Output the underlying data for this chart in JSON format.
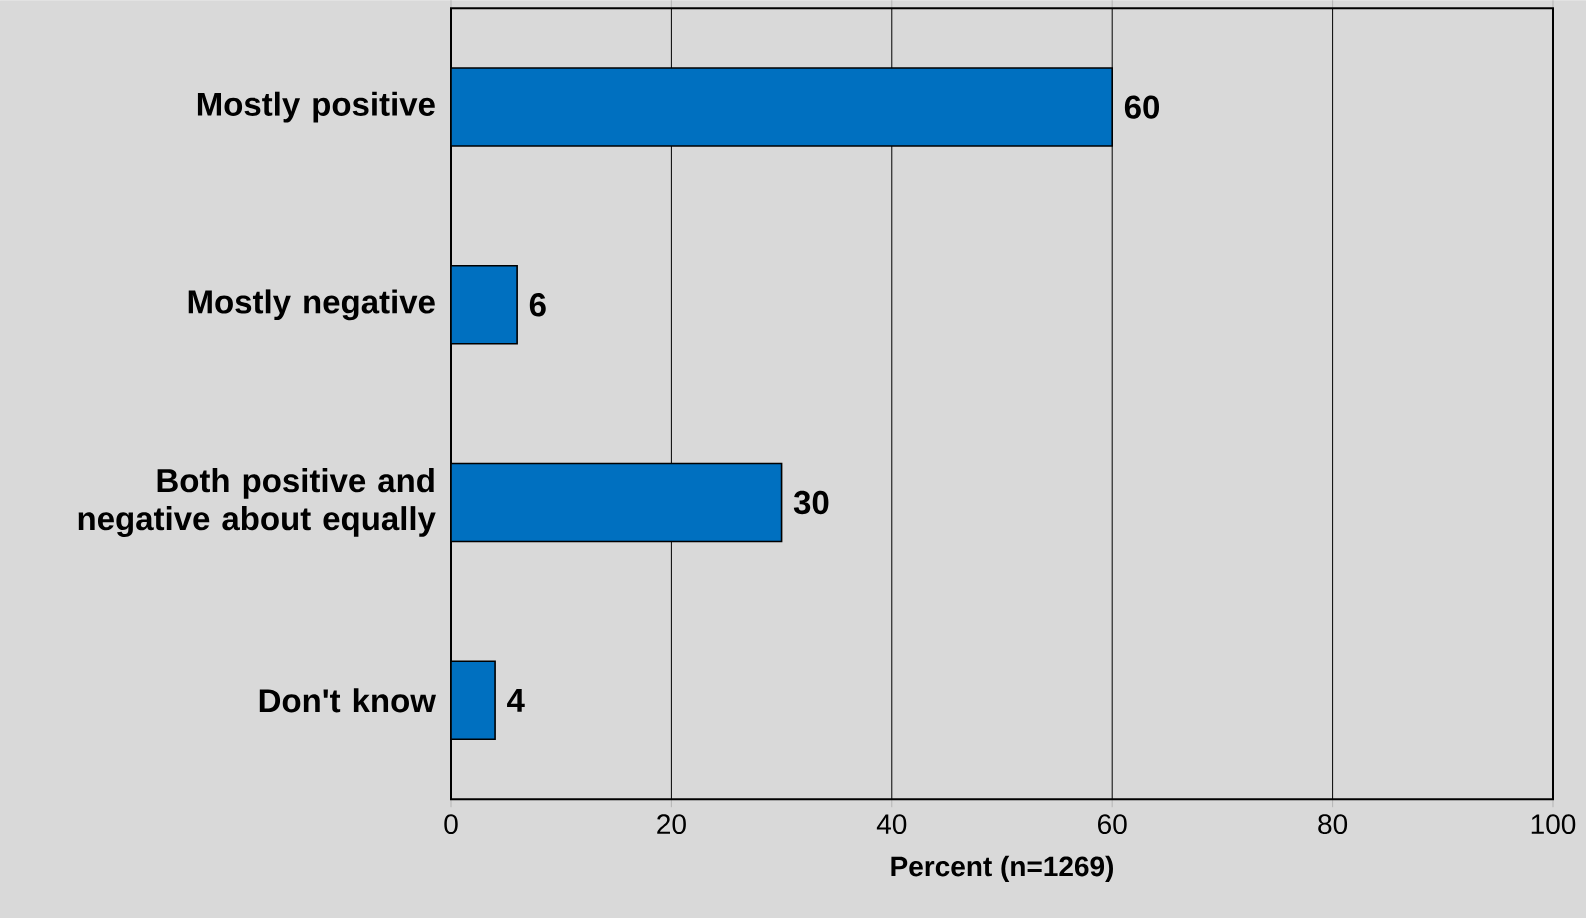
{
  "chart_data": {
    "type": "bar",
    "orientation": "horizontal",
    "categories": [
      "Mostly positive",
      "Mostly negative",
      "Both positive and negative about equally",
      "Don't know"
    ],
    "values": [
      60,
      6,
      30,
      4
    ],
    "color": "#0070c0",
    "xlim": [
      0,
      100
    ],
    "xticks": [
      0,
      20,
      40,
      60,
      80,
      100
    ],
    "xlabel": "Percent (n=1269)",
    "data_labels": true,
    "grid": "x"
  }
}
